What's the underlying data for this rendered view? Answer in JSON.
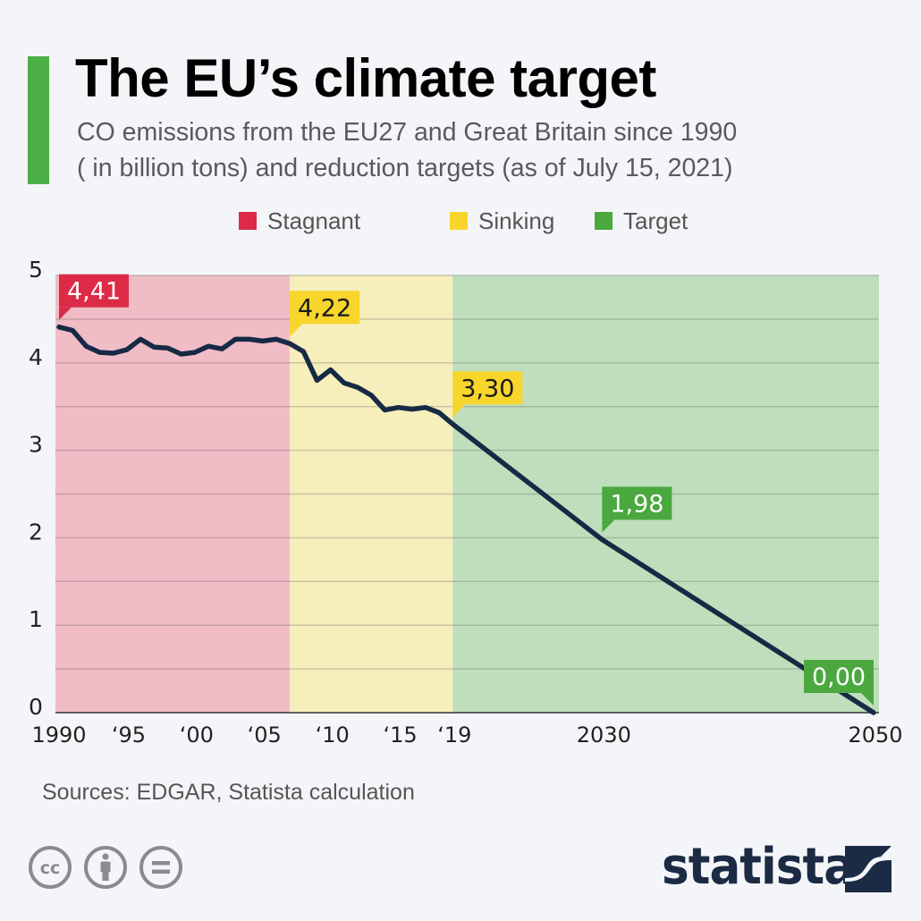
{
  "header": {
    "title": "The EU’s climate target",
    "subtitle_lines": [
      "CO emissions from the EU27 and Great Britain since 1990",
      "( in billion tons) and reduction targets (as of July 15, 2021)"
    ],
    "accent_color": "#4caf46"
  },
  "legend": [
    {
      "label": "Stagnant",
      "color": "#dc2a47"
    },
    {
      "label": "Sinking",
      "color": "#f7d52a"
    },
    {
      "label": "Target",
      "color": "#4aa83e"
    }
  ],
  "chart_data": {
    "type": "line",
    "title": "The EU’s climate target",
    "subtitle": "CO emissions from the EU27 and Great Britain since 1990 ( in billion tons) and reduction targets (as of July 15, 2021)",
    "xlabel": "",
    "ylabel": "",
    "xlim": [
      1990,
      2050
    ],
    "ylim": [
      0,
      5
    ],
    "grid": true,
    "grid_step": 0.5,
    "legend_position": "top-center",
    "y_ticks": [
      0,
      1,
      2,
      3,
      4,
      5
    ],
    "y_tick_labels": [
      "0",
      "1",
      "2",
      "3",
      "4",
      "5"
    ],
    "x_ticks": [
      1990,
      1995,
      2000,
      2005,
      2010,
      2015,
      2019,
      2030,
      2050
    ],
    "x_tick_labels": [
      "1990",
      "‘95",
      "‘00",
      "‘05",
      "‘10",
      "‘15",
      "‘19",
      "2030",
      "2050"
    ],
    "bands": [
      {
        "name": "Stagnant",
        "from": 1990,
        "to": 2007,
        "color": "#f0bcc6"
      },
      {
        "name": "Sinking",
        "from": 2007,
        "to": 2019,
        "color": "#f6efbc"
      },
      {
        "name": "Target",
        "from": 2019,
        "to": 2050.5,
        "color": "#bfdfbc"
      }
    ],
    "series": [
      {
        "name": "CO emissions (billion tons)",
        "color": "#172a45",
        "x": [
          1990,
          1991,
          1992,
          1993,
          1994,
          1995,
          1996,
          1997,
          1998,
          1999,
          2000,
          2001,
          2002,
          2003,
          2004,
          2005,
          2006,
          2007,
          2008,
          2009,
          2010,
          2011,
          2012,
          2013,
          2014,
          2015,
          2016,
          2017,
          2018,
          2019,
          2030,
          2050
        ],
        "values": [
          4.41,
          4.37,
          4.19,
          4.12,
          4.11,
          4.15,
          4.27,
          4.18,
          4.17,
          4.1,
          4.12,
          4.19,
          4.16,
          4.27,
          4.27,
          4.25,
          4.27,
          4.22,
          4.13,
          3.8,
          3.92,
          3.77,
          3.72,
          3.63,
          3.46,
          3.49,
          3.47,
          3.49,
          3.43,
          3.3,
          1.98,
          0.0
        ]
      }
    ],
    "annotations": [
      {
        "x": 1990,
        "y": 4.41,
        "text": "4,41",
        "bg": "#dc2a47",
        "fg": "#ffffff",
        "tail": "bottom-left"
      },
      {
        "x": 2007,
        "y": 4.22,
        "text": "4,22",
        "bg": "#f7d52a",
        "fg": "#1a1a1a",
        "tail": "bottom-left"
      },
      {
        "x": 2019,
        "y": 3.3,
        "text": "3,30",
        "bg": "#f7d52a",
        "fg": "#1a1a1a",
        "tail": "bottom-left"
      },
      {
        "x": 2030,
        "y": 1.98,
        "text": "1,98",
        "bg": "#4aa83e",
        "fg": "#ffffff",
        "tail": "bottom-left"
      },
      {
        "x": 2050,
        "y": 0.0,
        "text": "0,00",
        "bg": "#4aa83e",
        "fg": "#ffffff",
        "tail": "bottom-right"
      }
    ]
  },
  "footer": {
    "sources": "Sources: EDGAR, Statista calculation",
    "license_icons": [
      "cc-icon",
      "attribution-icon",
      "no-derivatives-icon"
    ],
    "logo_text": "statista",
    "logo_color": "#1b2b44"
  }
}
